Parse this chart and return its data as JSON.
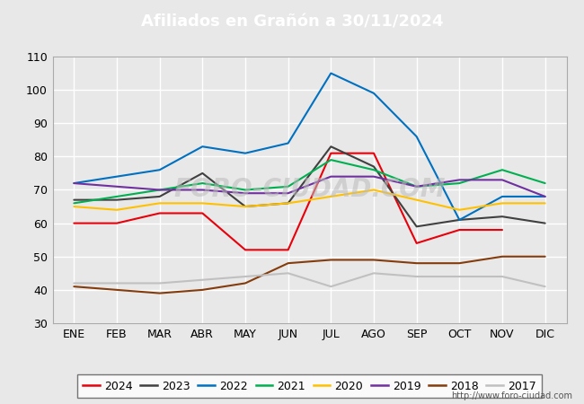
{
  "title": "Afiliados en Grañón a 30/11/2024",
  "title_color": "#ffffff",
  "title_bg_color": "#4472c4",
  "ylim": [
    30,
    110
  ],
  "yticks": [
    30,
    40,
    50,
    60,
    70,
    80,
    90,
    100,
    110
  ],
  "months": [
    "ENE",
    "FEB",
    "MAR",
    "ABR",
    "MAY",
    "JUN",
    "JUL",
    "AGO",
    "SEP",
    "OCT",
    "NOV",
    "DIC"
  ],
  "watermark": "FORO-CIUDAD.COM",
  "url": "http://www.foro-ciudad.com",
  "series": {
    "2024": {
      "color": "#e8000b",
      "data": [
        60,
        60,
        63,
        63,
        52,
        52,
        81,
        81,
        54,
        58,
        58,
        null
      ]
    },
    "2023": {
      "color": "#404040",
      "data": [
        67,
        67,
        68,
        75,
        65,
        66,
        83,
        77,
        59,
        61,
        62,
        60
      ]
    },
    "2022": {
      "color": "#0070c0",
      "data": [
        72,
        74,
        76,
        83,
        81,
        84,
        105,
        99,
        86,
        61,
        68,
        68
      ]
    },
    "2021": {
      "color": "#00b050",
      "data": [
        66,
        68,
        70,
        72,
        70,
        71,
        79,
        76,
        71,
        72,
        76,
        72
      ]
    },
    "2020": {
      "color": "#ffc000",
      "data": [
        65,
        64,
        66,
        66,
        65,
        66,
        68,
        70,
        67,
        64,
        66,
        66
      ]
    },
    "2019": {
      "color": "#7030a0",
      "data": [
        72,
        71,
        70,
        70,
        69,
        69,
        74,
        74,
        71,
        73,
        73,
        68
      ]
    },
    "2018": {
      "color": "#843c0c",
      "data": [
        41,
        40,
        39,
        40,
        42,
        48,
        49,
        49,
        48,
        48,
        50,
        50
      ]
    },
    "2017": {
      "color": "#c0c0c0",
      "data": [
        42,
        42,
        42,
        43,
        44,
        45,
        41,
        45,
        44,
        44,
        44,
        41
      ]
    }
  },
  "legend_order": [
    "2024",
    "2023",
    "2022",
    "2021",
    "2020",
    "2019",
    "2018",
    "2017"
  ],
  "fig_bg_color": "#e8e8e8",
  "plot_bg_color": "#e8e8e8",
  "grid_color": "#ffffff",
  "tick_fontsize": 9,
  "legend_fontsize": 9,
  "title_fontsize": 13
}
